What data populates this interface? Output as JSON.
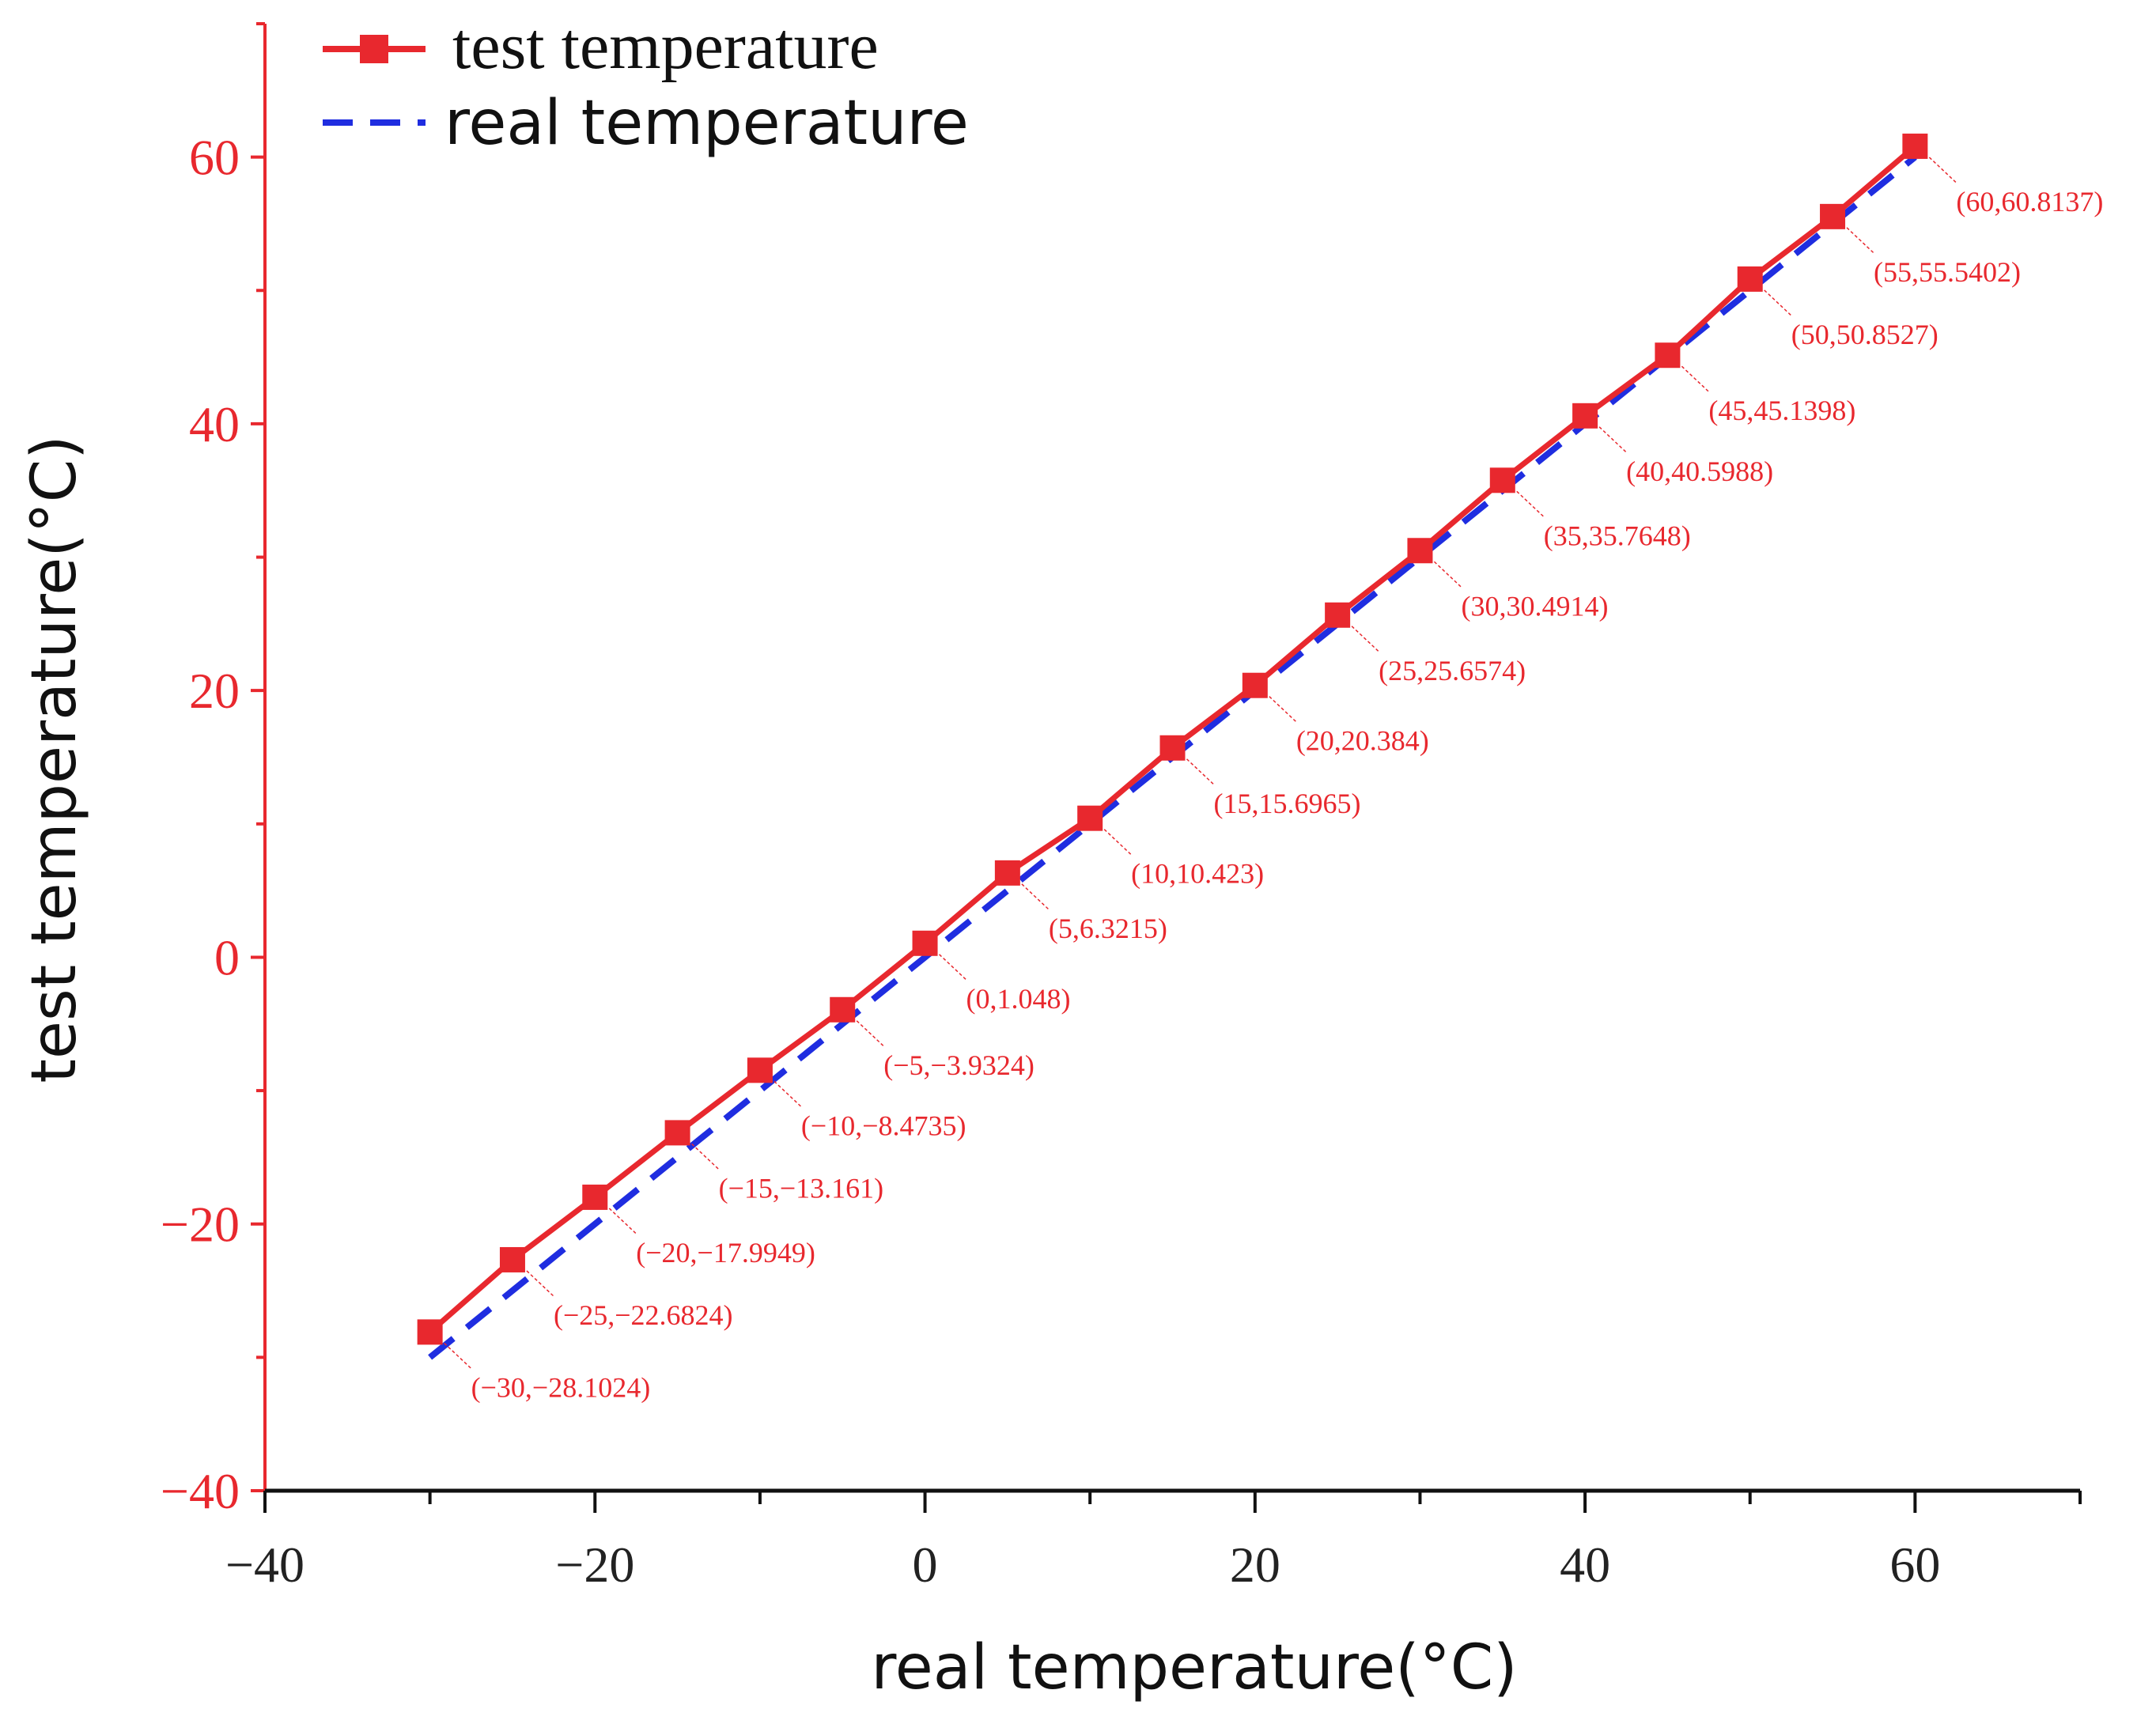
{
  "chart_data": {
    "type": "line",
    "title": "",
    "xlabel": "real temperature(°C)",
    "ylabel": "test temperature(°C)",
    "xlim": [
      -40,
      70
    ],
    "ylim": [
      -40,
      70
    ],
    "xticks": [
      -40,
      -20,
      0,
      20,
      40,
      60
    ],
    "yticks": [
      -40,
      -20,
      0,
      20,
      40,
      60
    ],
    "x": [
      -30,
      -25,
      -20,
      -15,
      -10,
      -5,
      0,
      5,
      10,
      15,
      20,
      25,
      30,
      35,
      40,
      45,
      50,
      55,
      60
    ],
    "series": [
      {
        "name": "test temperature",
        "style": "solid-square",
        "color": "#e8282e",
        "values": [
          -28.1024,
          -22.6824,
          -17.9949,
          -13.161,
          -8.4735,
          -3.9324,
          1.048,
          6.3215,
          10.423,
          15.6965,
          20.384,
          25.6574,
          30.4914,
          35.7648,
          40.5988,
          45.1398,
          50.8527,
          55.5402,
          60.8137
        ]
      },
      {
        "name": "real temperature",
        "style": "dashed",
        "color": "#1f2de0",
        "values": [
          -30,
          -25,
          -20,
          -15,
          -10,
          -5,
          0,
          5,
          10,
          15,
          20,
          25,
          30,
          35,
          40,
          45,
          50,
          55,
          60
        ]
      }
    ],
    "annotations": [
      "(−30,−28.1024)",
      "(−25,−22.6824)",
      "(−20,−17.9949)",
      "(−15,−13.161)",
      "(−10,−8.4735)",
      "(−5,−3.9324)",
      "(0,1.048)",
      "(5,6.3215)",
      "(10,10.423)",
      "(15,15.6965)",
      "(20,20.384)",
      "(25,25.6574)",
      "(30,30.4914)",
      "(35,35.7648)",
      "(40,40.5988)",
      "(45,45.1398)",
      "(50,50.8527)",
      "(55,55.5402)",
      "(60,60.8137)"
    ],
    "legend": "top-left",
    "grid": false
  }
}
